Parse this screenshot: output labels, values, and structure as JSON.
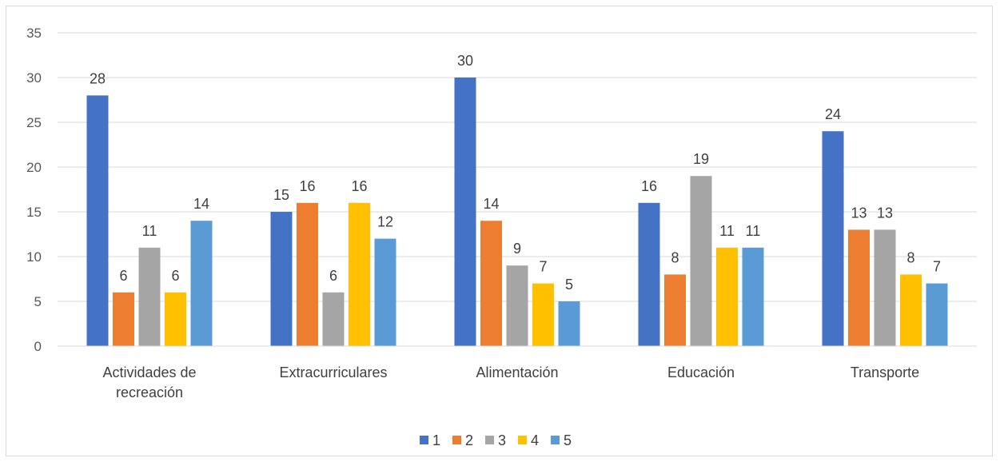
{
  "chart_data": {
    "type": "bar",
    "categories": [
      [
        "Actividades de",
        "recreación"
      ],
      [
        "Extracurriculares"
      ],
      [
        "Alimentación"
      ],
      [
        "Educación"
      ],
      [
        "Transporte"
      ]
    ],
    "series": [
      {
        "name": "1",
        "color": "#4472c4",
        "values": [
          28,
          15,
          30,
          16,
          24
        ]
      },
      {
        "name": "2",
        "color": "#ed7d31",
        "values": [
          6,
          16,
          14,
          8,
          13
        ]
      },
      {
        "name": "3",
        "color": "#a5a5a5",
        "values": [
          11,
          6,
          9,
          19,
          13
        ]
      },
      {
        "name": "4",
        "color": "#ffc000",
        "values": [
          6,
          16,
          7,
          11,
          8
        ]
      },
      {
        "name": "5",
        "color": "#5b9bd5",
        "values": [
          14,
          12,
          5,
          11,
          7
        ]
      }
    ],
    "ylim": [
      0,
      35
    ],
    "yticks": [
      0,
      5,
      10,
      15,
      20,
      25,
      30,
      35
    ],
    "grid": true,
    "legend_position": "bottom"
  }
}
